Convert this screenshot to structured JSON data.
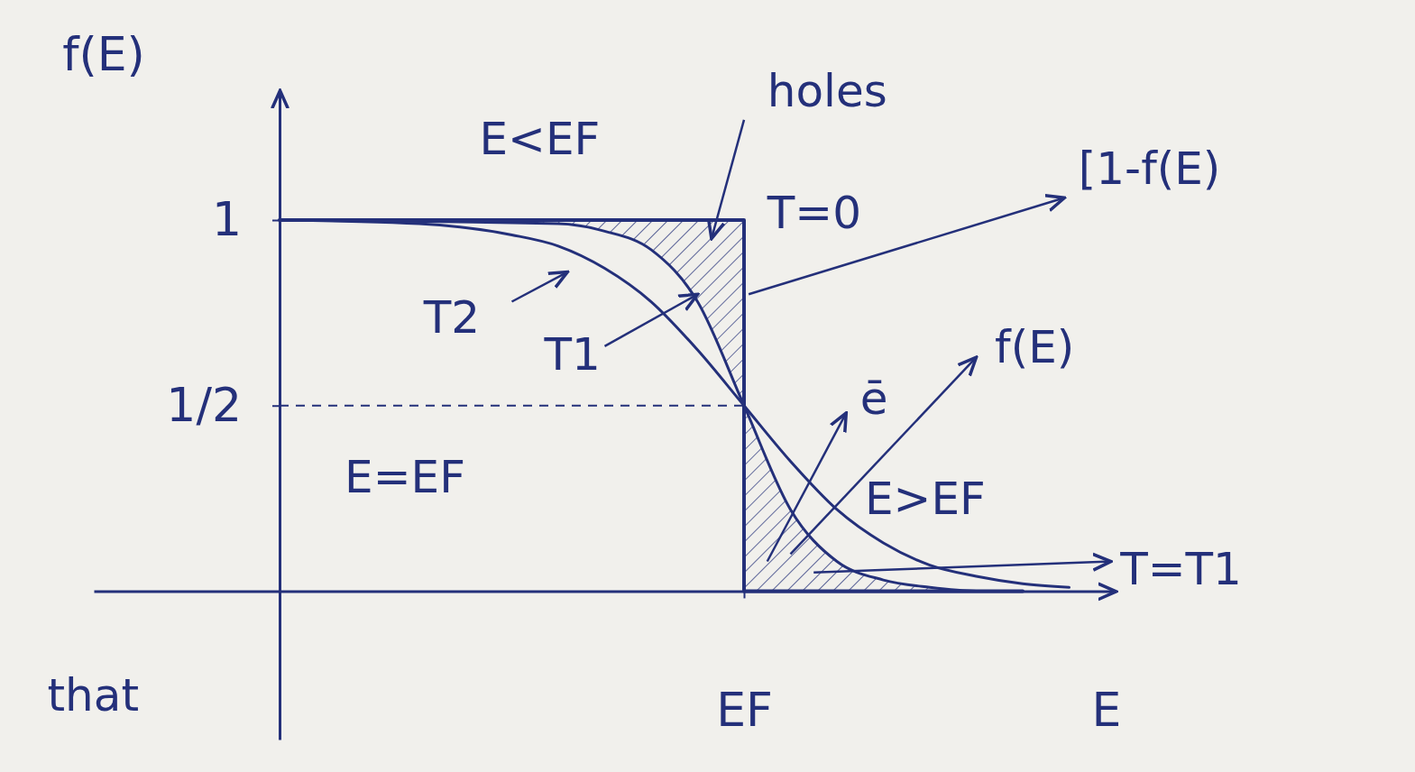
{
  "chart_data": {
    "type": "line",
    "y_label": "f(E)",
    "x_label": "E",
    "xlim": [
      -0.4,
      1.8
    ],
    "ylim": [
      -0.4,
      1.35
    ],
    "xticks": [
      {
        "value": 1,
        "label": "EF"
      }
    ],
    "yticks": [
      1,
      {
        "value": 0.5,
        "label": "1/2"
      }
    ],
    "grid": true,
    "series": [
      {
        "color": "#24307a",
        "line_style": "solid",
        "x": [
          0,
          1,
          1,
          1.6
        ],
        "values": [
          1,
          1,
          0,
          0
        ]
      },
      {
        "color": "#24307a",
        "line_style": "solid",
        "x": [
          0,
          0.3,
          0.5,
          0.6,
          0.7,
          0.8,
          0.9,
          1.0,
          1.1,
          1.2,
          1.3,
          1.4,
          1.5,
          1.6,
          1.7
        ],
        "values": [
          1,
          0.99,
          0.96,
          0.93,
          0.87,
          0.78,
          0.65,
          0.5,
          0.35,
          0.22,
          0.13,
          0.07,
          0.04,
          0.02,
          0.01
        ]
      },
      {
        "color": "#24307a",
        "line_style": "solid",
        "x": [
          0,
          0.6,
          0.7,
          0.8,
          0.9,
          1.0,
          1.1,
          1.2,
          1.3,
          1.4,
          1.5,
          1.6
        ],
        "values": [
          1,
          0.99,
          0.97,
          0.92,
          0.78,
          0.5,
          0.22,
          0.08,
          0.03,
          0.01,
          0,
          0
        ]
      }
    ],
    "annotations": [
      {
        "text": "E<EF",
        "x": 0.43,
        "y": 1.21
      },
      {
        "text": "holes",
        "x": 1.05,
        "y": 1.34
      },
      {
        "text": "T=0",
        "x": 1.05,
        "y": 1.01
      },
      {
        "text": "[1-f(E)",
        "x": 1.72,
        "y": 1.13
      },
      {
        "text": "T2",
        "x": 0.31,
        "y": 0.73
      },
      {
        "text": "T1",
        "x": 0.57,
        "y": 0.63
      },
      {
        "text": "E=EF",
        "x": 0.14,
        "y": 0.3
      },
      {
        "text": "ē",
        "x": 1.25,
        "y": 0.51
      },
      {
        "text": "f(E)",
        "x": 1.54,
        "y": 0.65
      },
      {
        "text": "E>EF",
        "x": 1.26,
        "y": 0.24
      },
      {
        "text": "T=T1",
        "x": 1.81,
        "y": 0.05
      },
      {
        "text": "that",
        "x": -0.5,
        "y": -0.29
      }
    ]
  }
}
